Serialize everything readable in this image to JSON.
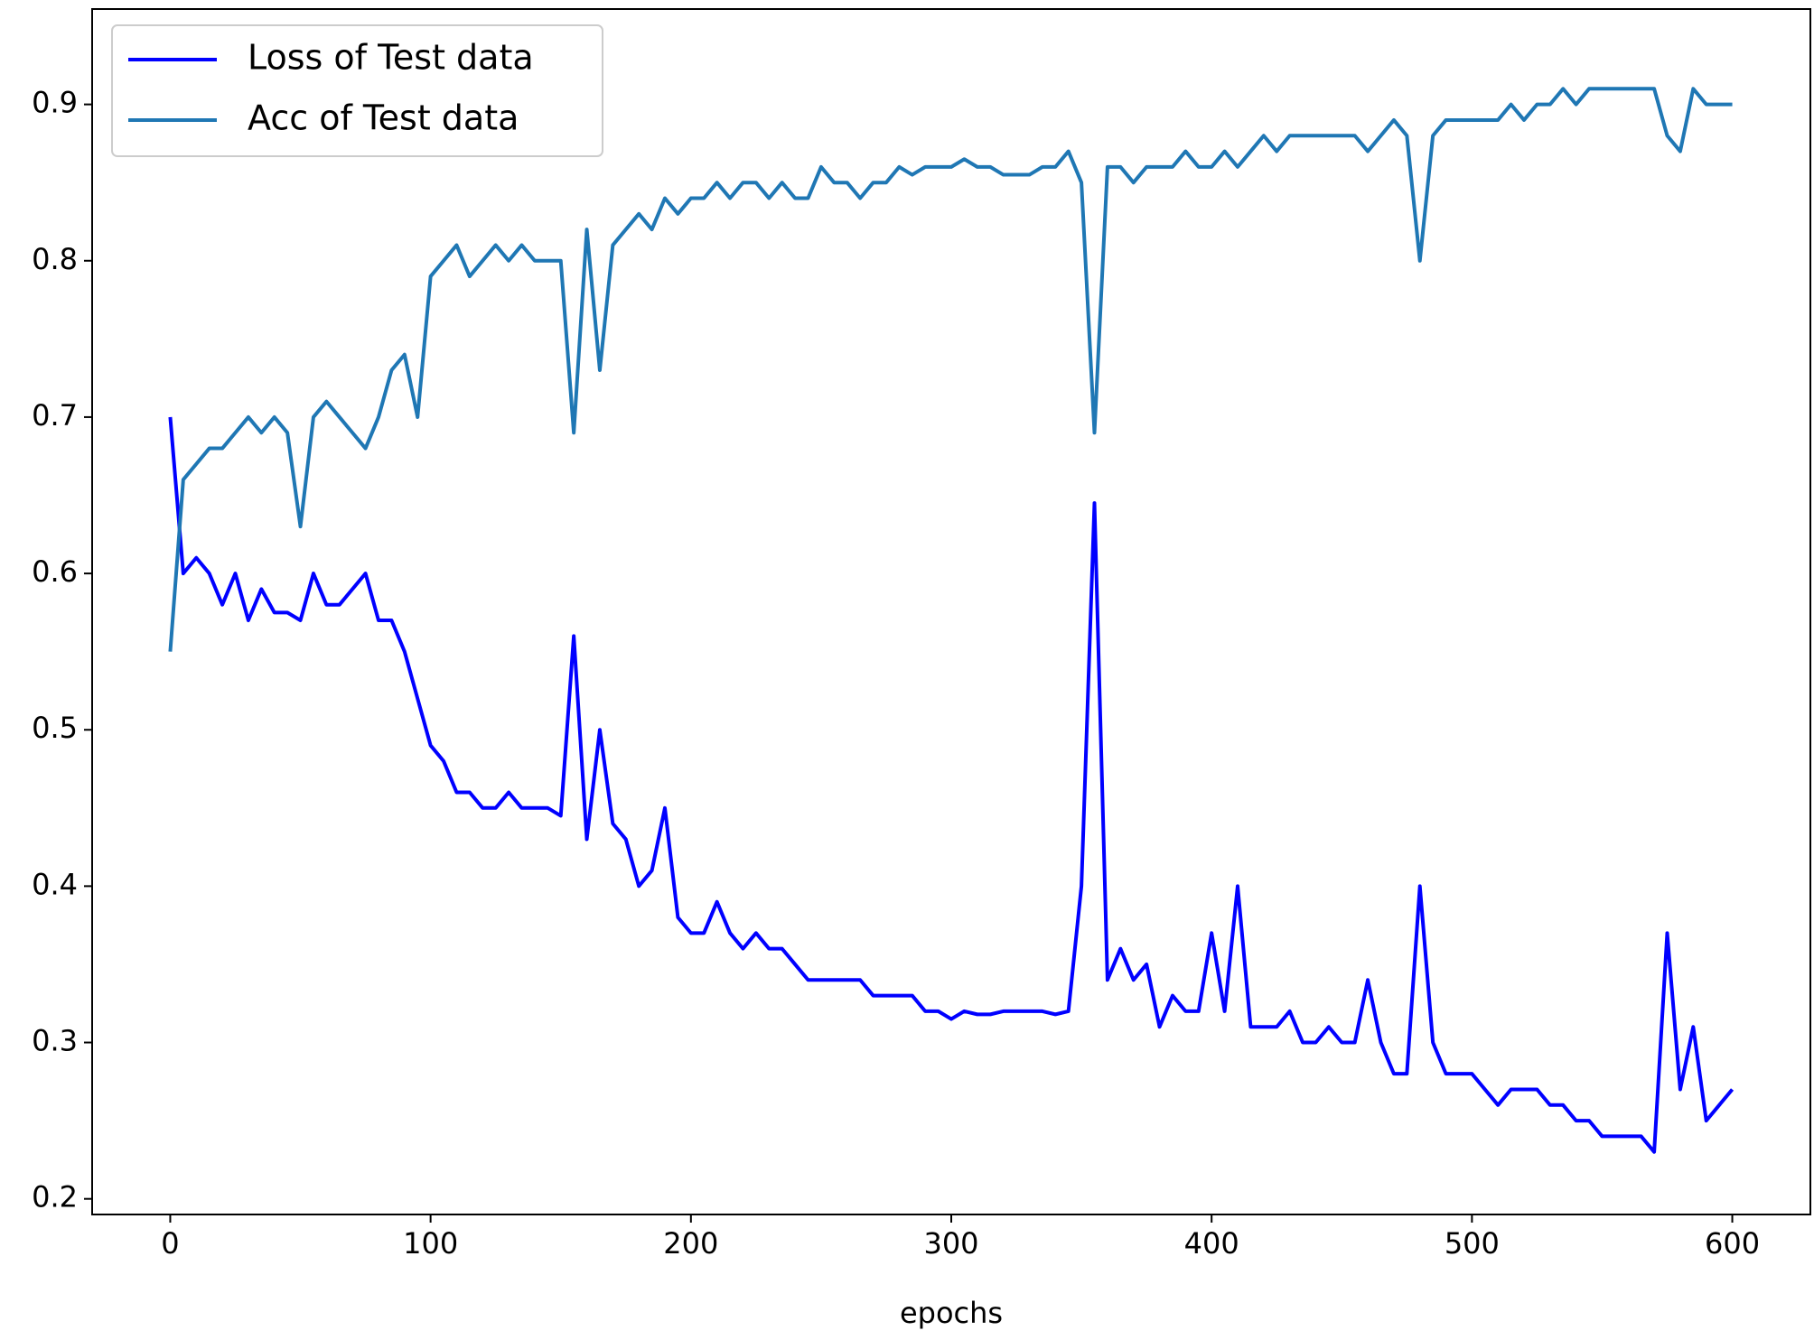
{
  "chart_data": {
    "type": "line",
    "x_label": "epochs",
    "x": [
      0,
      5,
      10,
      15,
      20,
      25,
      30,
      35,
      40,
      45,
      50,
      55,
      60,
      65,
      70,
      75,
      80,
      85,
      90,
      95,
      100,
      105,
      110,
      115,
      120,
      125,
      130,
      135,
      140,
      145,
      150,
      155,
      160,
      165,
      170,
      175,
      180,
      185,
      190,
      195,
      200,
      205,
      210,
      215,
      220,
      225,
      230,
      235,
      240,
      245,
      250,
      255,
      260,
      265,
      270,
      275,
      280,
      285,
      290,
      295,
      300,
      305,
      310,
      315,
      320,
      325,
      330,
      335,
      340,
      345,
      350,
      355,
      360,
      365,
      370,
      375,
      380,
      385,
      390,
      395,
      400,
      405,
      410,
      415,
      420,
      425,
      430,
      435,
      440,
      445,
      450,
      455,
      460,
      465,
      470,
      475,
      480,
      485,
      490,
      495,
      500,
      505,
      510,
      515,
      520,
      525,
      530,
      535,
      540,
      545,
      550,
      555,
      560,
      565,
      570,
      575,
      580,
      585,
      590,
      595,
      600
    ],
    "series": [
      {
        "name": "Loss of Test data",
        "color": "#0000ff",
        "values": [
          0.7,
          0.6,
          0.61,
          0.6,
          0.58,
          0.6,
          0.57,
          0.59,
          0.575,
          0.575,
          0.57,
          0.6,
          0.58,
          0.58,
          0.59,
          0.6,
          0.57,
          0.57,
          0.55,
          0.52,
          0.49,
          0.48,
          0.46,
          0.46,
          0.45,
          0.45,
          0.46,
          0.45,
          0.45,
          0.45,
          0.445,
          0.56,
          0.43,
          0.5,
          0.44,
          0.43,
          0.4,
          0.41,
          0.45,
          0.38,
          0.37,
          0.37,
          0.39,
          0.37,
          0.36,
          0.37,
          0.36,
          0.36,
          0.35,
          0.34,
          0.34,
          0.34,
          0.34,
          0.34,
          0.33,
          0.33,
          0.33,
          0.33,
          0.32,
          0.32,
          0.315,
          0.32,
          0.318,
          0.318,
          0.32,
          0.32,
          0.32,
          0.32,
          0.318,
          0.32,
          0.4,
          0.645,
          0.34,
          0.36,
          0.34,
          0.35,
          0.31,
          0.33,
          0.32,
          0.32,
          0.37,
          0.32,
          0.4,
          0.31,
          0.31,
          0.31,
          0.32,
          0.3,
          0.3,
          0.31,
          0.3,
          0.3,
          0.34,
          0.3,
          0.28,
          0.28,
          0.4,
          0.3,
          0.28,
          0.28,
          0.28,
          0.27,
          0.26,
          0.27,
          0.27,
          0.27,
          0.26,
          0.26,
          0.25,
          0.25,
          0.24,
          0.24,
          0.24,
          0.24,
          0.23,
          0.37,
          0.27,
          0.31,
          0.25,
          0.26,
          0.27
        ]
      },
      {
        "name": "Acc of Test data",
        "color": "#1f77b4",
        "values": [
          0.55,
          0.66,
          0.67,
          0.68,
          0.68,
          0.69,
          0.7,
          0.69,
          0.7,
          0.69,
          0.63,
          0.7,
          0.71,
          0.7,
          0.69,
          0.68,
          0.7,
          0.73,
          0.74,
          0.7,
          0.79,
          0.8,
          0.81,
          0.79,
          0.8,
          0.81,
          0.8,
          0.81,
          0.8,
          0.8,
          0.8,
          0.69,
          0.82,
          0.73,
          0.81,
          0.82,
          0.83,
          0.82,
          0.84,
          0.83,
          0.84,
          0.84,
          0.85,
          0.84,
          0.85,
          0.85,
          0.84,
          0.85,
          0.84,
          0.84,
          0.86,
          0.85,
          0.85,
          0.84,
          0.85,
          0.85,
          0.86,
          0.855,
          0.86,
          0.86,
          0.86,
          0.865,
          0.86,
          0.86,
          0.855,
          0.855,
          0.855,
          0.86,
          0.86,
          0.87,
          0.85,
          0.69,
          0.86,
          0.86,
          0.85,
          0.86,
          0.86,
          0.86,
          0.87,
          0.86,
          0.86,
          0.87,
          0.86,
          0.87,
          0.88,
          0.87,
          0.88,
          0.88,
          0.88,
          0.88,
          0.88,
          0.88,
          0.87,
          0.88,
          0.89,
          0.88,
          0.8,
          0.88,
          0.89,
          0.89,
          0.89,
          0.89,
          0.89,
          0.9,
          0.89,
          0.9,
          0.9,
          0.91,
          0.9,
          0.91,
          0.91,
          0.91,
          0.91,
          0.91,
          0.91,
          0.88,
          0.87,
          0.91,
          0.9,
          0.9,
          0.9
        ]
      }
    ],
    "xlim": [
      -30,
      630
    ],
    "ylim": [
      0.19,
      0.961
    ],
    "xticks": [
      0,
      100,
      200,
      300,
      400,
      500,
      600
    ],
    "yticks": [
      0.2,
      0.3,
      0.4,
      0.5,
      0.6,
      0.7,
      0.8,
      0.9
    ],
    "legend": "upper left"
  }
}
